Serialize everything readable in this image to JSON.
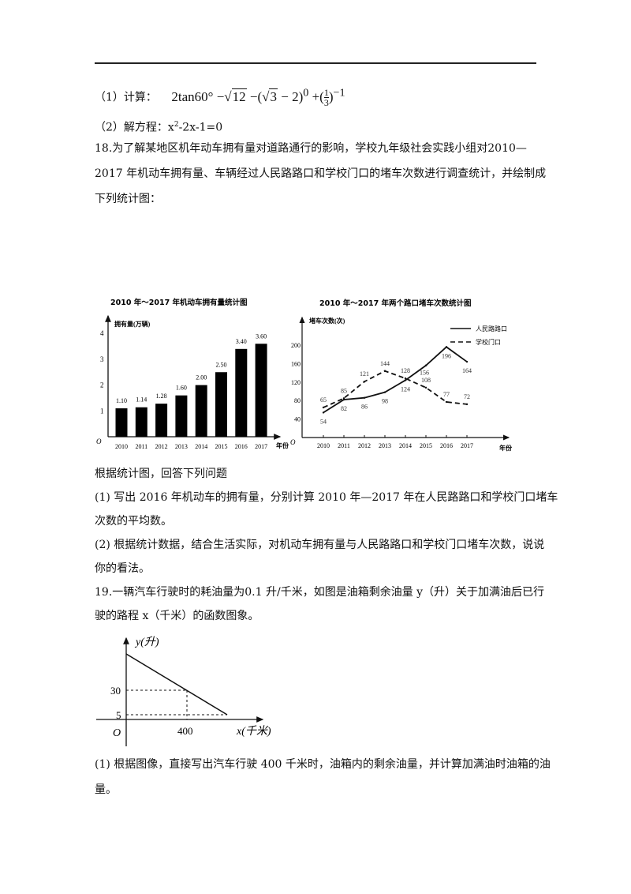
{
  "q17": {
    "part1_label": "（1）计算：",
    "part1_expr": {
      "a": "2tan60°",
      "b": "−",
      "c": "12",
      "d": "−(",
      "e": "3",
      "f": "− 2)",
      "g": "0",
      "h": "+(",
      "i": "1",
      "j": "3",
      "k": ")",
      "l": "−1"
    },
    "part2_label": "（2）解方程：",
    "part2_expr": {
      "base": "x",
      "sup": "2",
      "rest": "-2x-1=0"
    }
  },
  "q18": {
    "lines": [
      "18.为了解某地区机年动车拥有量对道路通行的影响，学校九年级社会实践小组对2010—",
      "2017 年机动车拥有量、车辆经过人民路路口和学校门口的堵车次数进行调查统计，并绘制成",
      "下列统计图："
    ],
    "intro": "根据统计图，回答下列问题",
    "q1": [
      "(1) 写出 2016 年机动车的拥有量，分别计算 2010 年—2017 年在人民路路口和学校门口堵车",
      "次数的平均数。"
    ],
    "q2": [
      "(2) 根据统计数据，结合生活实际，对机动车拥有量与人民路路口和学校门口堵车次数，说说",
      "你的看法。"
    ]
  },
  "chart_data": [
    {
      "type": "bar",
      "title": "2010 年～2017 年机动车拥有量统计图",
      "ylabel": "拥有量(万辆)",
      "xlabel": "年份",
      "origin_label": "O",
      "categories": [
        "2010",
        "2011",
        "2012",
        "2013",
        "2014",
        "2015",
        "2016",
        "2017"
      ],
      "values": [
        1.1,
        1.14,
        1.28,
        1.6,
        2.0,
        2.5,
        3.4,
        3.6
      ],
      "data_labels": [
        "1.10",
        "1.14",
        "1.28",
        "1.60",
        "2.00",
        "2.50",
        "3.40",
        "3.60"
      ],
      "yticks": [
        "1",
        "2",
        "3",
        "4"
      ],
      "ylim": [
        0,
        4.4
      ],
      "color": "#000000"
    },
    {
      "type": "line",
      "title": "2010 年～2017 年两个路口堵车次数统计图",
      "ylabel": "堵车次数(次)",
      "xlabel": "年份",
      "origin_label": "O",
      "categories": [
        "2010",
        "2011",
        "2012",
        "2013",
        "2014",
        "2015",
        "2016",
        "2017"
      ],
      "yticks": [
        "40",
        "80",
        "120",
        "160",
        "200"
      ],
      "ylim": [
        0,
        240
      ],
      "legend_position": "top-right",
      "series": [
        {
          "name": "人民路路口",
          "style": "solid",
          "values": [
            54,
            82,
            86,
            98,
            124,
            156,
            196,
            164
          ]
        },
        {
          "name": "学校门口",
          "style": "dashed",
          "values": [
            65,
            85,
            121,
            144,
            128,
            108,
            77,
            72
          ]
        }
      ]
    }
  ],
  "q19": {
    "lines": [
      "19.一辆汽车行驶时的耗油量为0.1 升/千米，如图是油箱剩余油量 y（升）关于加满油后已行",
      "驶的路程 x（千米）的函数图象。"
    ],
    "graph": {
      "ylabel": "y(升)",
      "xlabel": "x(千米)",
      "origin": "O",
      "ytick_30": "30",
      "ytick_5": "5",
      "xtick_400": "400"
    },
    "q1": [
      "(1) 根据图像，直接写出汽车行驶 400 千米时，油箱内的剩余油量，并计算加满油时油箱的油",
      "量。"
    ]
  }
}
